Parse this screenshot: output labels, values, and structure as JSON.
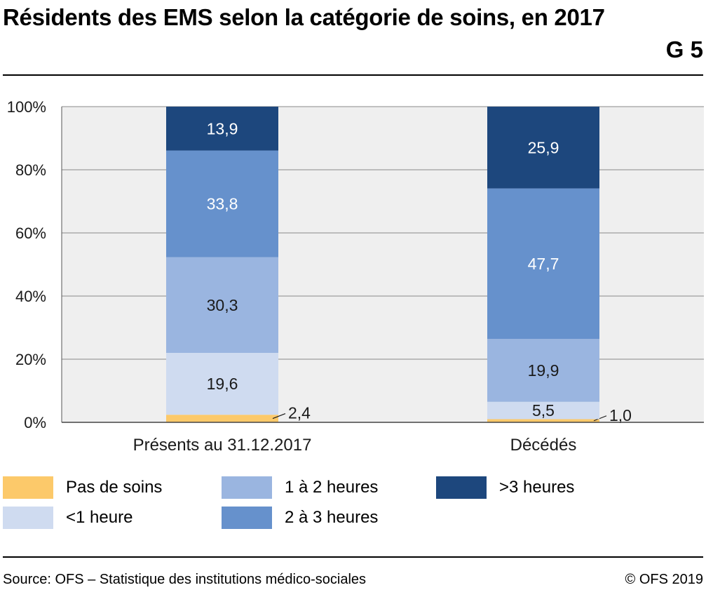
{
  "header": {
    "title": "Résidents des EMS selon la catégorie de soins, en 2017",
    "graph_number": "G 5"
  },
  "footer": {
    "source": "Source: OFS – Statistique des institutions médico-sociales",
    "copyright": "© OFS 2019"
  },
  "chart_data": {
    "type": "bar",
    "stacked": true,
    "title": "Résidents des EMS selon la catégorie de soins, en 2017",
    "categories": [
      "Présents au 31.12.2017",
      "Décédés"
    ],
    "series": [
      {
        "name": "Pas de soins",
        "color": "#fcc96a",
        "values": [
          2.4,
          1.0
        ],
        "labels": [
          "2,4",
          "1,0"
        ],
        "label_outside": true
      },
      {
        "name": "<1 heure",
        "color": "#cfdbf0",
        "values": [
          19.6,
          5.5
        ],
        "labels": [
          "19,6",
          "5,5"
        ]
      },
      {
        "name": "1 à 2 heures",
        "color": "#9ab5e0",
        "values": [
          30.3,
          19.9
        ],
        "labels": [
          "30,3",
          "19,9"
        ]
      },
      {
        "name": "2 à 3 heures",
        "color": "#6691cc",
        "values": [
          33.8,
          47.7
        ],
        "labels": [
          "33,8",
          "47,7"
        ]
      },
      {
        "name": ">3 heures",
        "color": "#1d477d",
        "values": [
          13.9,
          25.9
        ],
        "labels": [
          "13,9",
          "25,9"
        ]
      }
    ],
    "ylim": [
      0,
      100
    ],
    "yticks": [
      "0%",
      "20%",
      "40%",
      "60%",
      "80%",
      "100%"
    ],
    "grid": true,
    "legend_placement": "bottom",
    "dark_label_color": "#1a1a1a",
    "light_label_color": "#ffffff",
    "plot_background": "#efefef"
  }
}
